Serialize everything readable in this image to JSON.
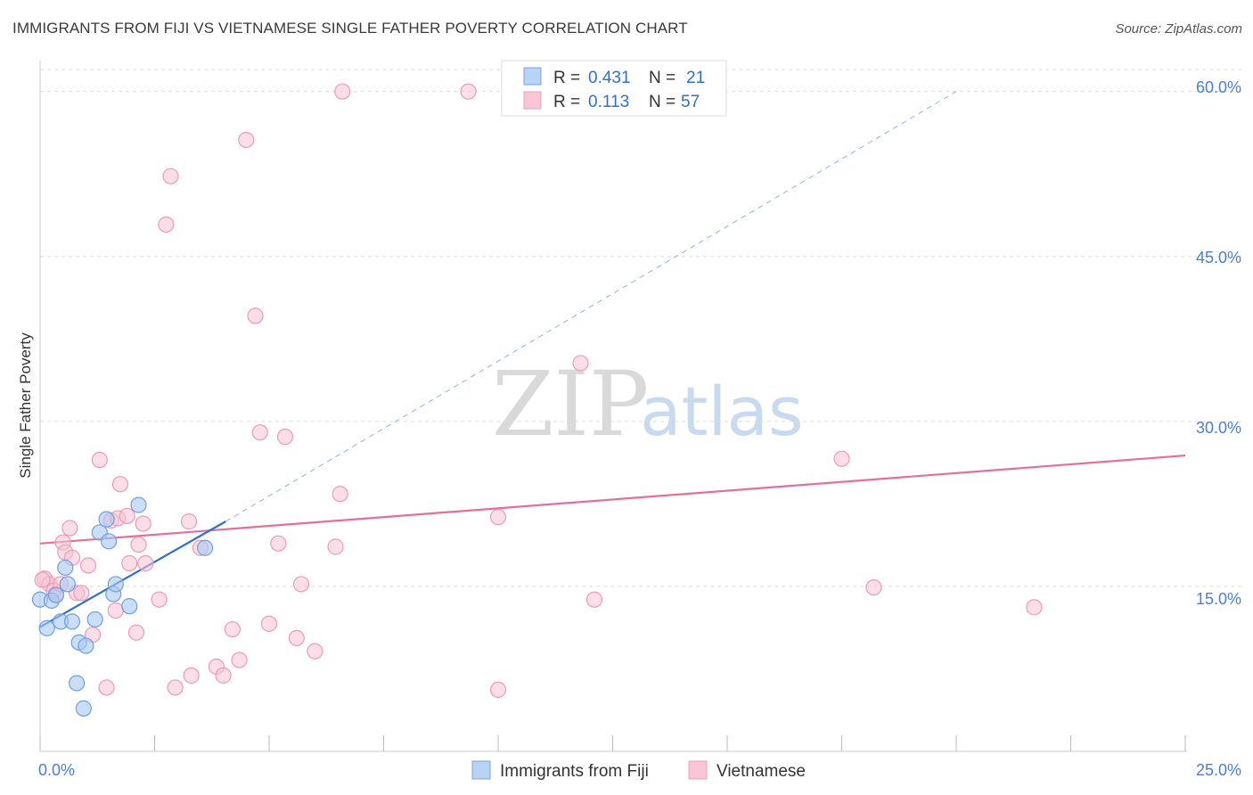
{
  "title": "IMMIGRANTS FROM FIJI VS VIETNAMESE SINGLE FATHER POVERTY CORRELATION CHART",
  "source": "Source: ZipAtlas.com",
  "watermark": {
    "zip": "ZIP",
    "atlas": "atlas"
  },
  "legend": {
    "r_label": "R =",
    "n_label": "N =",
    "rows": [
      {
        "r": "0.431",
        "n": "21",
        "color": "#9dc2f0"
      },
      {
        "r": "0.113",
        "n": "57",
        "color": "#f7b3c8"
      }
    ]
  },
  "bottom_legend": [
    "Immigrants from Fiji",
    "Vietnamese"
  ],
  "colors": {
    "fiji_fill": "#a9c8f2",
    "fiji_stroke": "#6f9fdf",
    "fiji_line": "#2f6fd0",
    "viet_fill": "#f8c3d3",
    "viet_stroke": "#ef9ab5",
    "viet_line": "#e66f98",
    "grid": "#dddddd",
    "axis_label": "#4a7fd0"
  },
  "chart_data": {
    "type": "scatter",
    "title": "IMMIGRANTS FROM FIJI VS VIETNAMESE SINGLE FATHER POVERTY CORRELATION CHART",
    "xlabel": "",
    "ylabel": "Single Father Poverty",
    "xlim": [
      0,
      25
    ],
    "ylim": [
      0,
      62
    ],
    "x_tick_labels": [
      "0.0%",
      "25.0%"
    ],
    "y_ticks": [
      15,
      30,
      45,
      60
    ],
    "y_tick_labels": [
      "15.0%",
      "30.0%",
      "45.0%",
      "60.0%"
    ],
    "grid": true,
    "series": [
      {
        "name": "Immigrants from Fiji",
        "R": 0.431,
        "N": 21,
        "points": [
          [
            0.0,
            13.8
          ],
          [
            0.15,
            11.2
          ],
          [
            0.25,
            13.7
          ],
          [
            0.35,
            14.2
          ],
          [
            0.45,
            11.8
          ],
          [
            0.55,
            16.7
          ],
          [
            0.6,
            15.2
          ],
          [
            0.7,
            11.8
          ],
          [
            0.8,
            6.2
          ],
          [
            0.85,
            9.9
          ],
          [
            0.95,
            3.9
          ],
          [
            1.0,
            9.6
          ],
          [
            1.2,
            12.0
          ],
          [
            1.3,
            19.9
          ],
          [
            1.45,
            21.1
          ],
          [
            1.5,
            19.1
          ],
          [
            1.6,
            14.3
          ],
          [
            1.65,
            15.2
          ],
          [
            1.95,
            13.2
          ],
          [
            2.15,
            22.4
          ],
          [
            3.6,
            18.5
          ]
        ],
        "trend": {
          "x0": 0.0,
          "y0": 11.3,
          "x1": 4.05,
          "y1": 20.9,
          "dashed_to_x": 20.0,
          "dashed_to_y": 60.0
        }
      },
      {
        "name": "Vietnamese",
        "R": 0.113,
        "N": 57,
        "points": [
          [
            0.1,
            15.7
          ],
          [
            0.2,
            15.2
          ],
          [
            0.3,
            14.6
          ],
          [
            0.35,
            14.3
          ],
          [
            0.45,
            15.2
          ],
          [
            0.5,
            19.0
          ],
          [
            0.55,
            18.1
          ],
          [
            0.65,
            20.3
          ],
          [
            0.7,
            17.6
          ],
          [
            0.8,
            14.4
          ],
          [
            0.9,
            14.4
          ],
          [
            1.05,
            16.9
          ],
          [
            1.15,
            10.6
          ],
          [
            1.3,
            26.5
          ],
          [
            1.45,
            5.8
          ],
          [
            1.55,
            21.0
          ],
          [
            1.65,
            12.8
          ],
          [
            1.7,
            21.2
          ],
          [
            1.75,
            24.3
          ],
          [
            1.9,
            21.4
          ],
          [
            1.95,
            17.1
          ],
          [
            2.1,
            10.8
          ],
          [
            2.15,
            18.8
          ],
          [
            2.25,
            20.7
          ],
          [
            2.3,
            17.1
          ],
          [
            2.6,
            13.8
          ],
          [
            2.75,
            47.9
          ],
          [
            2.85,
            52.3
          ],
          [
            2.95,
            5.8
          ],
          [
            3.25,
            20.9
          ],
          [
            3.3,
            6.9
          ],
          [
            3.5,
            18.5
          ],
          [
            3.85,
            7.7
          ],
          [
            4.0,
            6.9
          ],
          [
            4.2,
            11.1
          ],
          [
            4.35,
            8.3
          ],
          [
            4.5,
            55.6
          ],
          [
            4.7,
            39.6
          ],
          [
            4.8,
            29.0
          ],
          [
            5.0,
            11.6
          ],
          [
            5.2,
            18.9
          ],
          [
            5.35,
            28.6
          ],
          [
            5.6,
            10.3
          ],
          [
            5.7,
            15.2
          ],
          [
            6.0,
            9.1
          ],
          [
            6.45,
            18.6
          ],
          [
            6.55,
            23.4
          ],
          [
            6.6,
            60.0
          ],
          [
            9.35,
            60.0
          ],
          [
            10.0,
            21.3
          ],
          [
            10.0,
            5.6
          ],
          [
            11.8,
            35.3
          ],
          [
            12.1,
            13.8
          ],
          [
            17.5,
            26.6
          ],
          [
            18.2,
            14.9
          ],
          [
            21.7,
            13.1
          ],
          [
            0.05,
            15.6
          ]
        ],
        "trend": {
          "x0": 0.0,
          "y0": 18.9,
          "x1": 25.0,
          "y1": 26.9
        }
      }
    ]
  }
}
